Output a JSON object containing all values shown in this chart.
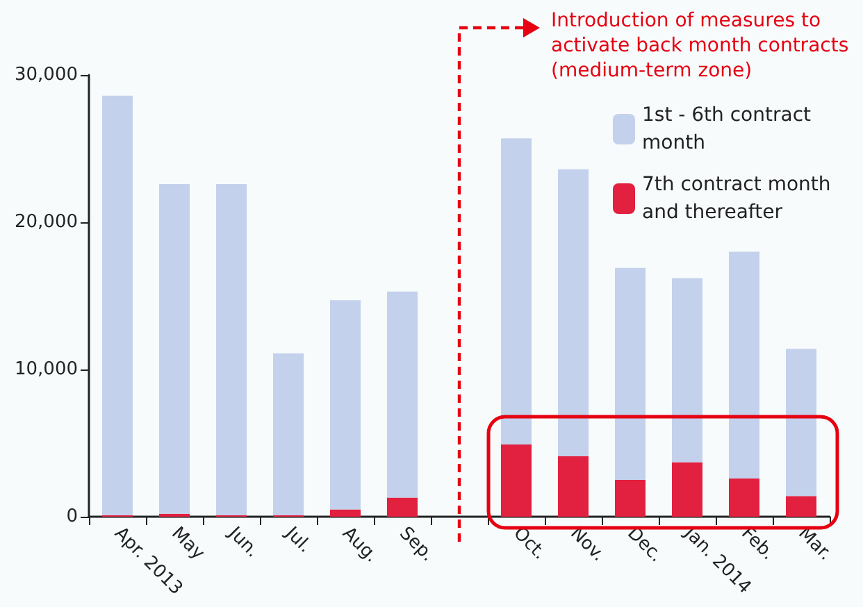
{
  "chart_data": {
    "type": "bar",
    "stacked": true,
    "categories": [
      "Apr. 2013",
      "May",
      "Jun.",
      "Jul.",
      "Aug.",
      "Sep.",
      null,
      "Oct.",
      "Nov.",
      "Dec.",
      "Jan. 2014",
      "Feb.",
      "Mar."
    ],
    "series": [
      {
        "name": "7th contract month and thereafter",
        "color": "#e2203f",
        "values": [
          100,
          200,
          100,
          100,
          500,
          1300,
          null,
          4900,
          4100,
          2500,
          3700,
          2600,
          1400
        ]
      },
      {
        "name": "1st - 6th contract month",
        "color": "#c3d1ec",
        "values": [
          28500,
          22400,
          22500,
          11000,
          14200,
          14000,
          null,
          20800,
          19500,
          14400,
          12500,
          15400,
          10000
        ]
      }
    ],
    "ylim": [
      0,
      30000
    ],
    "yticks": [
      0,
      {
        "value": 10000,
        "label": "10,000"
      },
      {
        "value": 20000,
        "label": "20,000"
      },
      {
        "value": 30000,
        "label": "30,000"
      }
    ],
    "grid": false,
    "legend": "top right",
    "annotations": [
      "Introduction of measures to activate back month contracts (medium-term zone)"
    ]
  }
}
